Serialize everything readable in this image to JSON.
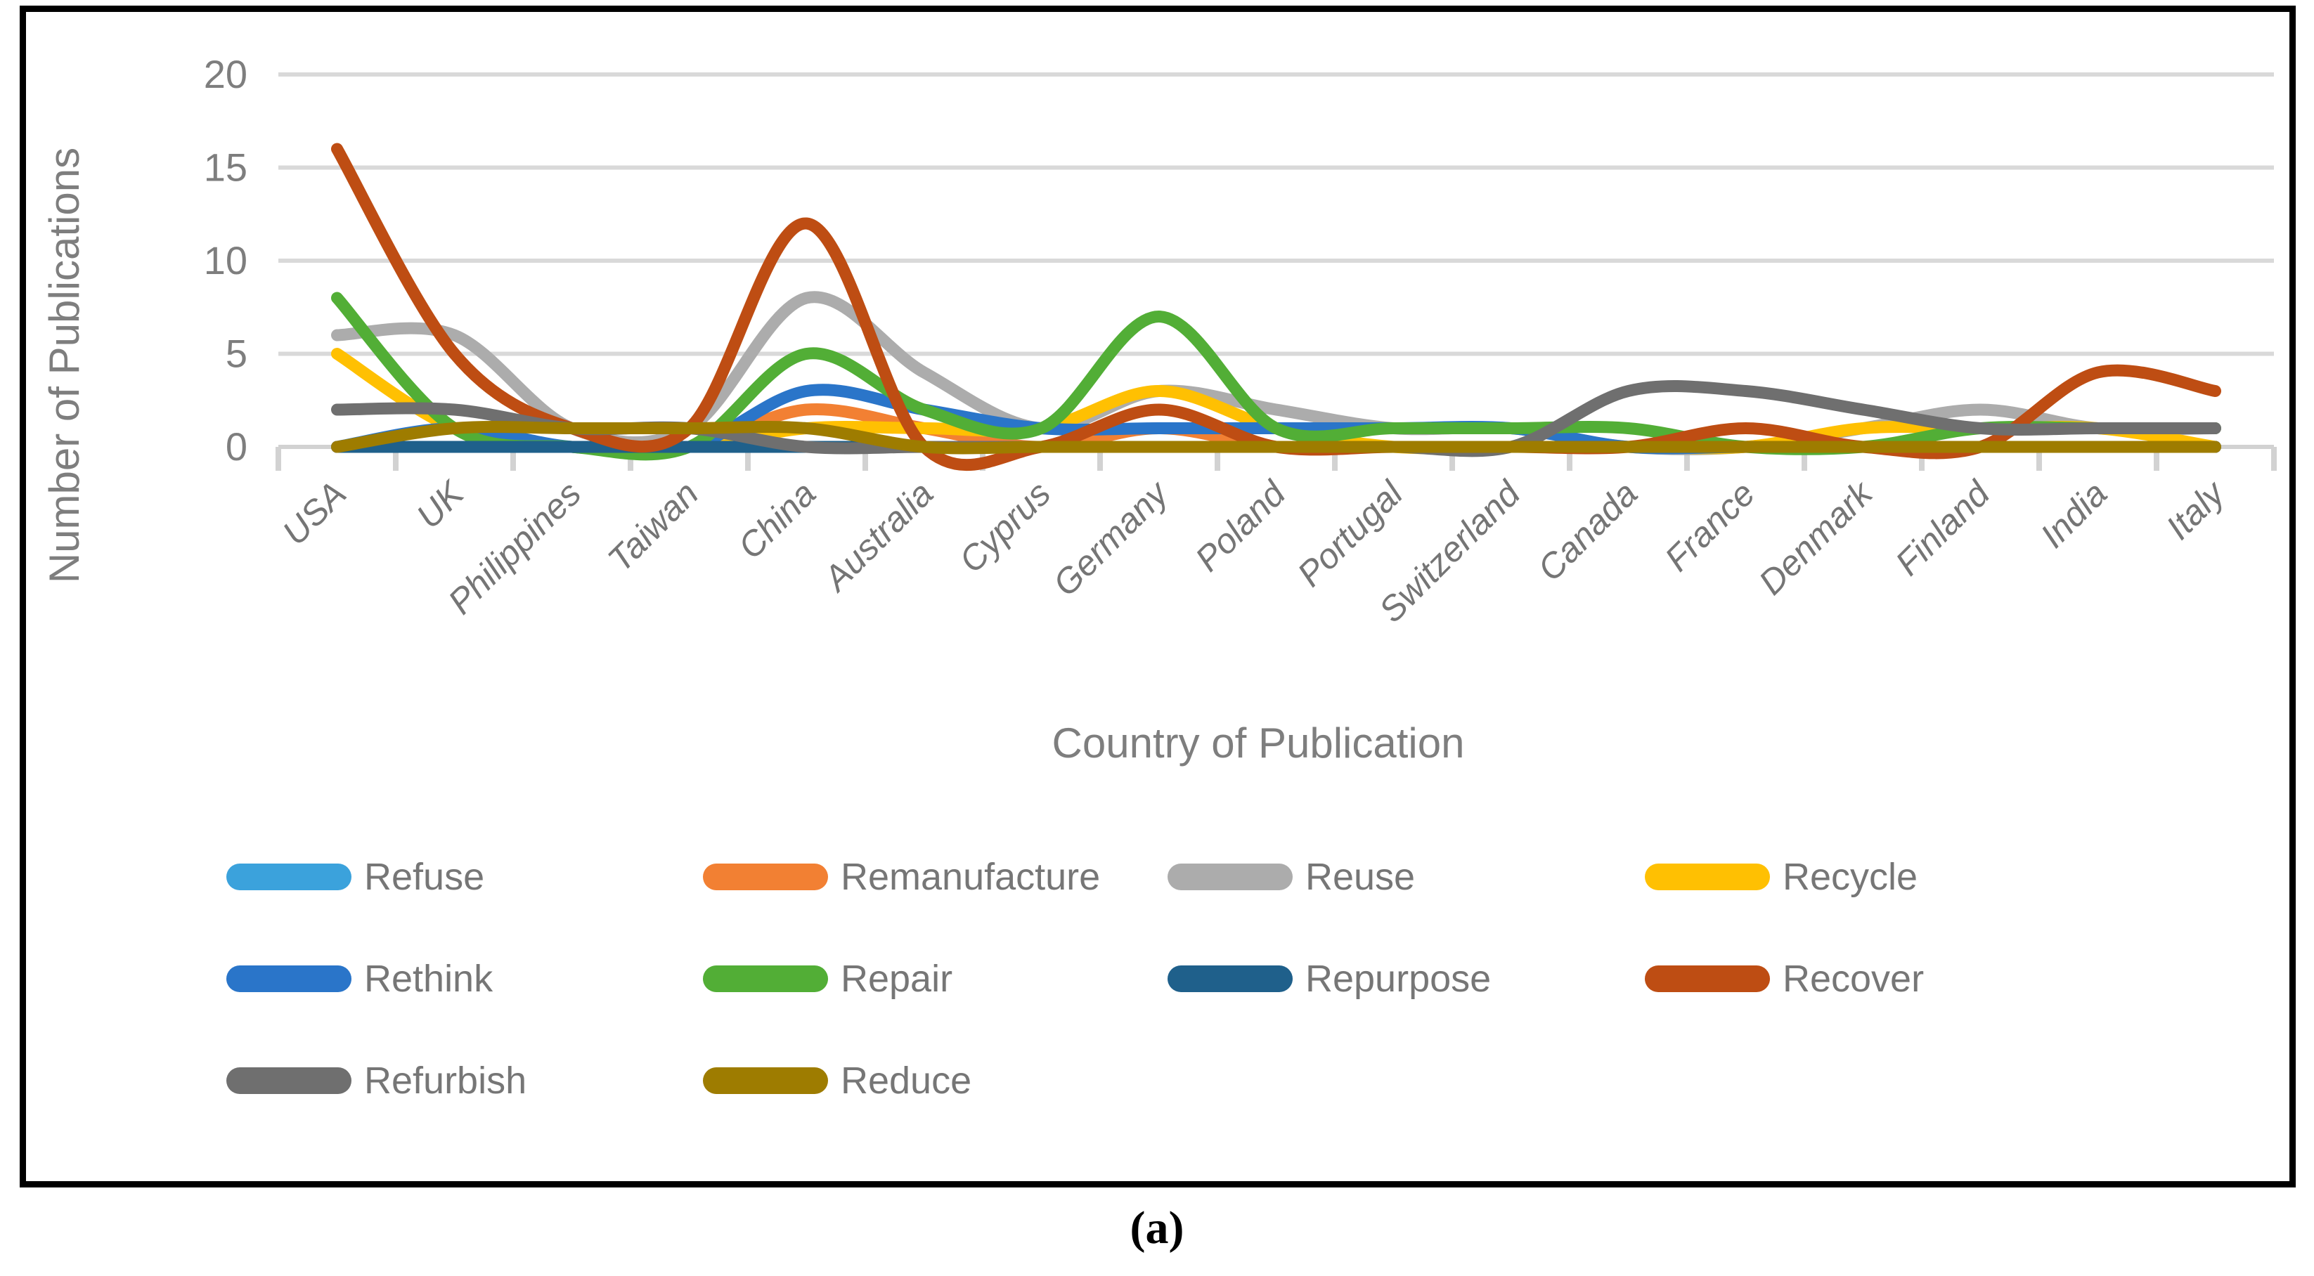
{
  "figure": {
    "caption": "(a)"
  },
  "chart_data": {
    "type": "line",
    "smooth": true,
    "title": "",
    "xlabel": "Country of Publication",
    "ylabel": "Number of Publications",
    "ylim": [
      0,
      20
    ],
    "yticks": [
      0,
      5,
      10,
      15,
      20
    ],
    "grid": "horizontal-only",
    "legend_position": "bottom",
    "categories": [
      "USA",
      "UK",
      "Philippines",
      "Taiwan",
      "China",
      "Australia",
      "Cyprus",
      "Germany",
      "Poland",
      "Portugal",
      "Switzerland",
      "Canada",
      "France",
      "Denmark",
      "Finland",
      "India",
      "Italy"
    ],
    "series": [
      {
        "name": "Refuse",
        "color": "#3BA2DC",
        "values": [
          0,
          0,
          0,
          0,
          0,
          0,
          0,
          0,
          0,
          0,
          0,
          0,
          0,
          0,
          0,
          0,
          0
        ]
      },
      {
        "name": "Remanufacture",
        "color": "#F28033",
        "values": [
          0,
          0,
          0,
          0,
          2,
          1,
          0,
          1,
          0,
          0,
          0,
          0,
          0,
          0,
          0,
          0,
          0
        ]
      },
      {
        "name": "Reuse",
        "color": "#ACACAC",
        "values": [
          6,
          6,
          1,
          1,
          8,
          4,
          1,
          3,
          2,
          1,
          1,
          0,
          0,
          1,
          2,
          1,
          1
        ]
      },
      {
        "name": "Recycle",
        "color": "#FFC002",
        "values": [
          5,
          1,
          0,
          0,
          1,
          1,
          1,
          3,
          1,
          0,
          0,
          0,
          0,
          1,
          1,
          1,
          0
        ]
      },
      {
        "name": "Rethink",
        "color": "#2A75C9",
        "values": [
          0,
          1,
          0,
          0,
          3,
          2,
          1,
          1,
          1,
          1,
          1,
          0,
          0,
          0,
          0,
          0,
          0
        ]
      },
      {
        "name": "Repair",
        "color": "#52AE36",
        "values": [
          8,
          1,
          0,
          0,
          5,
          2,
          1,
          7,
          1,
          1,
          1,
          1,
          0,
          0,
          1,
          1,
          1
        ]
      },
      {
        "name": "Repurpose",
        "color": "#1F608B",
        "values": [
          0,
          0,
          0,
          0,
          0,
          0,
          0,
          0,
          0,
          0,
          0,
          0,
          0,
          0,
          0,
          0,
          0
        ]
      },
      {
        "name": "Recover",
        "color": "#BE4D13",
        "values": [
          16,
          5,
          1,
          1,
          12,
          0,
          0,
          2,
          0,
          0,
          0,
          0,
          1,
          0,
          0,
          4,
          3
        ]
      },
      {
        "name": "Refurbish",
        "color": "#6F6F6F",
        "values": [
          2,
          2,
          1,
          1,
          0,
          0,
          0,
          0,
          0,
          0,
          0,
          3,
          3,
          2,
          1,
          1,
          1
        ]
      },
      {
        "name": "Reduce",
        "color": "#9E7C00",
        "values": [
          0,
          1,
          1,
          1,
          1,
          0,
          0,
          0,
          0,
          0,
          0,
          0,
          0,
          0,
          0,
          0,
          0
        ]
      }
    ]
  },
  "legend": {
    "rows": [
      [
        0,
        1,
        2,
        3
      ],
      [
        4,
        5,
        6,
        7
      ],
      [
        8,
        9
      ]
    ]
  }
}
